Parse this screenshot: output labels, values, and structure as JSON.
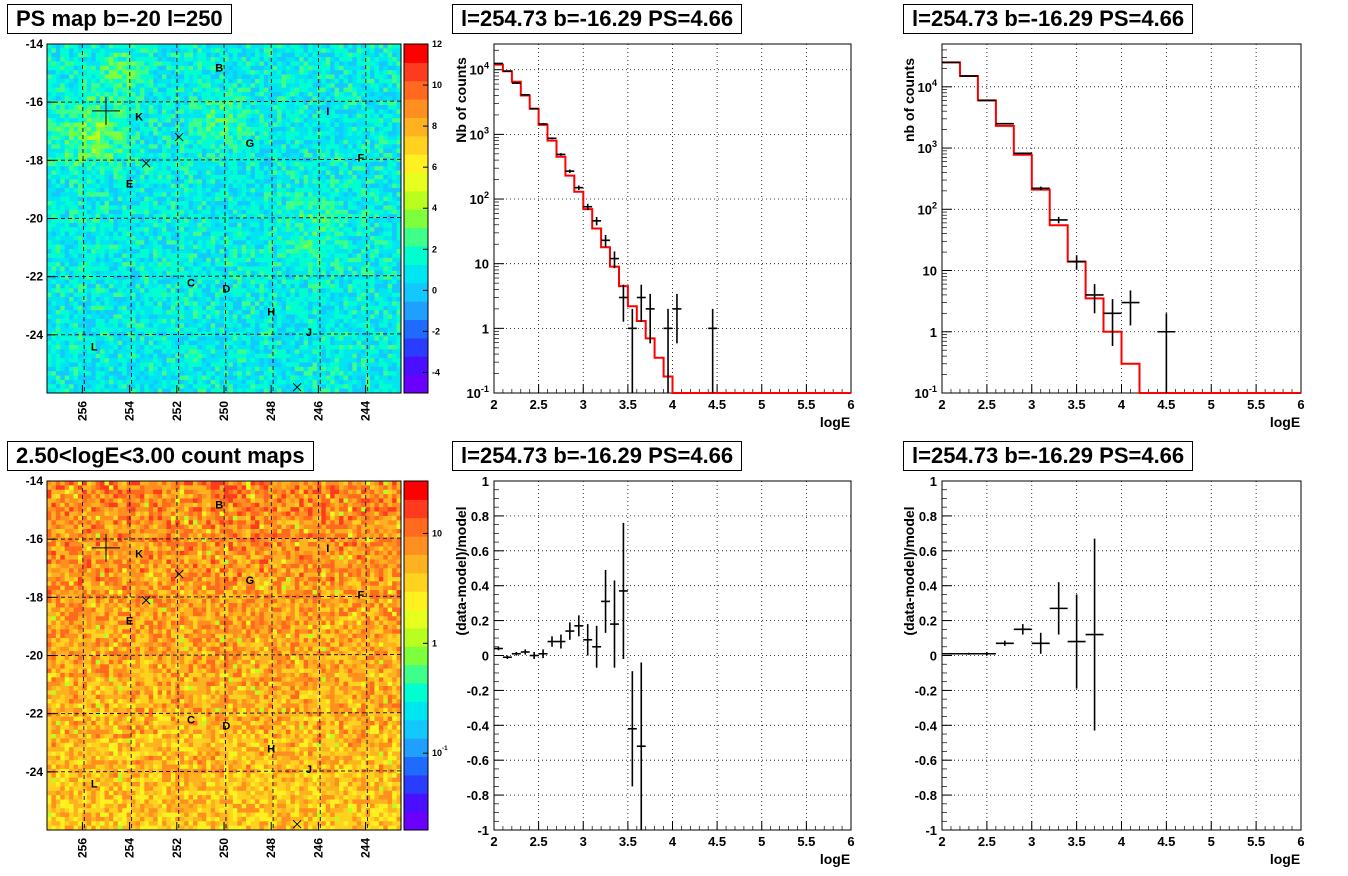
{
  "titles": {
    "map_top": "PS map b=-20 l=250",
    "map_bottom": "2.50<logE<3.00 count maps",
    "spec_fine": "l=254.73 b=-16.29 PS=4.66",
    "spec_coarse": "l=254.73 b=-16.29 PS=4.66",
    "resid_fine": "l=254.73 b=-16.29 PS=4.66",
    "resid_coarse": "l=254.73 b=-16.29 PS=4.66"
  },
  "chart_data": [
    {
      "id": "map_top",
      "type": "heatmap",
      "x_ticks": [
        "256",
        "254",
        "252",
        "250",
        "248",
        "246",
        "244"
      ],
      "x_tick_values": [
        256,
        254,
        252,
        250,
        248,
        246,
        244
      ],
      "xlim": [
        257.5,
        242.5
      ],
      "y_ticks": [
        "-14",
        "-16",
        "-18",
        "-20",
        "-22",
        "-24"
      ],
      "y_tick_values": [
        -14,
        -16,
        -18,
        -20,
        -22,
        -24
      ],
      "ylim": [
        -26,
        -14
      ],
      "colorbar_ticks": [
        "12",
        "10",
        "8",
        "6",
        "4",
        "2",
        "0",
        "-2",
        "-4"
      ],
      "colorbar_tick_values": [
        12,
        10,
        8,
        6,
        4,
        2,
        0,
        -2,
        -4
      ],
      "colorbar_range": [
        -5,
        12
      ],
      "colorbar_scale": "linear",
      "grid": true,
      "sources": [
        {
          "label": "B",
          "l": 250.2,
          "b": -14.8
        },
        {
          "label": "I",
          "l": 245.6,
          "b": -16.3
        },
        {
          "label": "K",
          "l": 253.6,
          "b": -16.5
        },
        {
          "label": "G",
          "l": 248.9,
          "b": -17.4
        },
        {
          "label": "F",
          "l": 244.2,
          "b": -17.9
        },
        {
          "label": "E",
          "l": 254.0,
          "b": -18.8
        },
        {
          "label": "C",
          "l": 251.4,
          "b": -22.2
        },
        {
          "label": "D",
          "l": 249.9,
          "b": -22.4
        },
        {
          "label": "H",
          "l": 248.0,
          "b": -23.2
        },
        {
          "label": "J",
          "l": 246.4,
          "b": -23.9
        },
        {
          "label": "L",
          "l": 255.5,
          "b": -24.4
        }
      ],
      "markers": [
        {
          "kind": "plus",
          "l": 255.0,
          "b": -16.3
        },
        {
          "kind": "x",
          "l": 253.3,
          "b": -18.1
        },
        {
          "kind": "x",
          "l": 251.9,
          "b": -17.2
        },
        {
          "kind": "x",
          "l": 246.9,
          "b": -25.8
        }
      ]
    },
    {
      "id": "map_bottom",
      "type": "heatmap",
      "x_ticks": [
        "256",
        "254",
        "252",
        "250",
        "248",
        "246",
        "244"
      ],
      "x_tick_values": [
        256,
        254,
        252,
        250,
        248,
        246,
        244
      ],
      "xlim": [
        257.5,
        242.5
      ],
      "y_ticks": [
        "-14",
        "-16",
        "-18",
        "-20",
        "-22",
        "-24"
      ],
      "y_tick_values": [
        -14,
        -16,
        -18,
        -20,
        -22,
        -24
      ],
      "ylim": [
        -26,
        -14
      ],
      "colorbar_ticks": [
        "10",
        "1",
        "10-1"
      ],
      "colorbar_tick_values": [
        10,
        1,
        0.1
      ],
      "colorbar_range": [
        0.02,
        30
      ],
      "colorbar_scale": "log",
      "grid": true,
      "sources": [
        {
          "label": "B",
          "l": 250.2,
          "b": -14.8
        },
        {
          "label": "I",
          "l": 245.6,
          "b": -16.3
        },
        {
          "label": "K",
          "l": 253.6,
          "b": -16.5
        },
        {
          "label": "G",
          "l": 248.9,
          "b": -17.4
        },
        {
          "label": "F",
          "l": 244.2,
          "b": -17.9
        },
        {
          "label": "E",
          "l": 254.0,
          "b": -18.8
        },
        {
          "label": "C",
          "l": 251.4,
          "b": -22.2
        },
        {
          "label": "D",
          "l": 249.9,
          "b": -22.4
        },
        {
          "label": "H",
          "l": 248.0,
          "b": -23.2
        },
        {
          "label": "J",
          "l": 246.4,
          "b": -23.9
        },
        {
          "label": "L",
          "l": 255.5,
          "b": -24.4
        }
      ],
      "markers": [
        {
          "kind": "plus",
          "l": 255.0,
          "b": -16.3
        },
        {
          "kind": "x",
          "l": 253.3,
          "b": -18.1
        },
        {
          "kind": "x",
          "l": 251.9,
          "b": -17.2
        },
        {
          "kind": "x",
          "l": 246.9,
          "b": -25.8
        }
      ]
    },
    {
      "id": "spec_fine",
      "type": "line",
      "xlabel": "logE",
      "ylabel": "Nb of counts",
      "yscale": "log",
      "xlim": [
        2,
        6
      ],
      "ylim": [
        0.1,
        25000
      ],
      "x_ticks": [
        "2",
        "2.5",
        "3",
        "3.5",
        "4",
        "4.5",
        "5",
        "5.5",
        "6"
      ],
      "x_tick_values": [
        2,
        2.5,
        3,
        3.5,
        4,
        4.5,
        5,
        5.5,
        6
      ],
      "y_ticks": [
        "10-1",
        "1",
        "10",
        "102",
        "103",
        "104"
      ],
      "y_tick_values": [
        0.1,
        1,
        10,
        100,
        1000,
        10000
      ],
      "grid": true,
      "bin_edges": [
        2.0,
        2.1,
        2.2,
        2.3,
        2.4,
        2.5,
        2.6,
        2.7,
        2.8,
        2.9,
        3.0,
        3.1,
        3.2,
        3.3,
        3.4,
        3.5,
        3.6,
        3.7,
        3.8,
        3.9,
        4.0,
        4.1,
        4.2,
        4.3,
        4.4,
        4.5,
        4.6,
        4.7,
        4.8,
        4.9,
        5.0,
        5.1,
        5.2,
        5.3,
        5.4,
        5.5,
        5.6,
        5.7,
        5.8,
        5.9,
        6.0
      ],
      "model": [
        12000,
        9500,
        6500,
        4000,
        2500,
        1400,
        800,
        450,
        230,
        130,
        70,
        35,
        18,
        9,
        4.5,
        2.2,
        1.3,
        0.7,
        0.35,
        0.18,
        0.1,
        0.1,
        0.1,
        0.1,
        0.1,
        0.1,
        0.1,
        0.1,
        0.1,
        0.1,
        0.1,
        0.1,
        0.1,
        0.1,
        0.1,
        0.1,
        0.1,
        0.1,
        0.1,
        0.1
      ],
      "data": [
        {
          "x": 2.05,
          "y": 12500
        },
        {
          "x": 2.15,
          "y": 9500
        },
        {
          "x": 2.25,
          "y": 6200
        },
        {
          "x": 2.35,
          "y": 4100
        },
        {
          "x": 2.45,
          "y": 2500
        },
        {
          "x": 2.55,
          "y": 1450
        },
        {
          "x": 2.65,
          "y": 870
        },
        {
          "x": 2.75,
          "y": 490
        },
        {
          "x": 2.85,
          "y": 270
        },
        {
          "x": 2.95,
          "y": 150
        },
        {
          "x": 3.05,
          "y": 76
        },
        {
          "x": 3.15,
          "y": 46
        },
        {
          "x": 3.25,
          "y": 23
        },
        {
          "x": 3.35,
          "y": 12
        },
        {
          "x": 3.45,
          "y": 3
        },
        {
          "x": 3.55,
          "y": 1
        },
        {
          "x": 3.65,
          "y": 3
        },
        {
          "x": 3.75,
          "y": 2
        },
        {
          "x": 3.95,
          "y": 1
        },
        {
          "x": 4.05,
          "y": 2
        },
        {
          "x": 4.45,
          "y": 1
        }
      ]
    },
    {
      "id": "spec_coarse",
      "type": "line",
      "xlabel": "logE",
      "ylabel": "nb of counts",
      "yscale": "log",
      "xlim": [
        2,
        6
      ],
      "ylim": [
        0.1,
        50000
      ],
      "x_ticks": [
        "2",
        "2.5",
        "3",
        "3.5",
        "4",
        "4.5",
        "5",
        "5.5",
        "6"
      ],
      "x_tick_values": [
        2,
        2.5,
        3,
        3.5,
        4,
        4.5,
        5,
        5.5,
        6
      ],
      "y_ticks": [
        "10-1",
        "1",
        "10",
        "102",
        "103",
        "104"
      ],
      "y_tick_values": [
        0.1,
        1,
        10,
        100,
        1000,
        10000
      ],
      "grid": true,
      "bin_edges": [
        2.0,
        2.2,
        2.4,
        2.6,
        2.8,
        3.0,
        3.2,
        3.4,
        3.6,
        3.8,
        4.0,
        4.2,
        4.4,
        4.6,
        4.8,
        5.0,
        5.2,
        5.4,
        5.6,
        5.8,
        6.0
      ],
      "model": [
        25000,
        15000,
        6000,
        2300,
        780,
        210,
        55,
        14,
        3.5,
        1.0,
        0.3,
        0.1,
        0.1,
        0.1,
        0.1,
        0.1,
        0.1,
        0.1,
        0.1,
        0.1
      ],
      "data": [
        {
          "x": 2.1,
          "y": 25000
        },
        {
          "x": 2.3,
          "y": 15000
        },
        {
          "x": 2.5,
          "y": 6000
        },
        {
          "x": 2.7,
          "y": 2500
        },
        {
          "x": 2.9,
          "y": 820
        },
        {
          "x": 3.1,
          "y": 220
        },
        {
          "x": 3.3,
          "y": 67
        },
        {
          "x": 3.5,
          "y": 14
        },
        {
          "x": 3.7,
          "y": 4
        },
        {
          "x": 3.9,
          "y": 2
        },
        {
          "x": 4.1,
          "y": 3
        },
        {
          "x": 4.5,
          "y": 1
        }
      ]
    },
    {
      "id": "resid_fine",
      "type": "scatter",
      "xlabel": "logE",
      "ylabel": "(data-model)/model",
      "xlim": [
        2,
        6
      ],
      "ylim": [
        -1,
        1
      ],
      "x_ticks": [
        "2",
        "2.5",
        "3",
        "3.5",
        "4",
        "4.5",
        "5",
        "5.5",
        "6"
      ],
      "x_tick_values": [
        2,
        2.5,
        3,
        3.5,
        4,
        4.5,
        5,
        5.5,
        6
      ],
      "y_ticks": [
        "1",
        "0.8",
        "0.6",
        "0.4",
        "0.2",
        "0",
        "-0.2",
        "-0.4",
        "-0.6",
        "-0.8",
        "-1"
      ],
      "y_tick_values": [
        1,
        0.8,
        0.6,
        0.4,
        0.2,
        0,
        -0.2,
        -0.4,
        -0.6,
        -0.8,
        -1
      ],
      "grid": true,
      "points": [
        {
          "x": 2.05,
          "y": 0.04,
          "err": 0.01
        },
        {
          "x": 2.15,
          "y": -0.01,
          "err": 0.01
        },
        {
          "x": 2.25,
          "y": 0.01,
          "err": 0.01
        },
        {
          "x": 2.35,
          "y": 0.02,
          "err": 0.015
        },
        {
          "x": 2.45,
          "y": 0.0,
          "err": 0.02
        },
        {
          "x": 2.55,
          "y": 0.01,
          "err": 0.025
        },
        {
          "x": 2.65,
          "y": 0.08,
          "err": 0.03
        },
        {
          "x": 2.75,
          "y": 0.08,
          "err": 0.04
        },
        {
          "x": 2.85,
          "y": 0.14,
          "err": 0.05
        },
        {
          "x": 2.95,
          "y": 0.17,
          "err": 0.06
        },
        {
          "x": 3.05,
          "y": 0.09,
          "err": 0.09
        },
        {
          "x": 3.15,
          "y": 0.05,
          "err": 0.12
        },
        {
          "x": 3.25,
          "y": 0.31,
          "err": 0.18
        },
        {
          "x": 3.35,
          "y": 0.18,
          "err": 0.25
        },
        {
          "x": 3.45,
          "y": 0.37,
          "err": 0.39
        },
        {
          "x": 3.55,
          "y": -0.42,
          "err": 0.33
        },
        {
          "x": 3.65,
          "y": -0.52,
          "err": 0.48
        }
      ]
    },
    {
      "id": "resid_coarse",
      "type": "scatter",
      "xlabel": "logE",
      "ylabel": "(data-model)/model",
      "xlim": [
        2,
        6
      ],
      "ylim": [
        -1,
        1
      ],
      "x_ticks": [
        "2",
        "2.5",
        "3",
        "3.5",
        "4",
        "4.5",
        "5",
        "5.5",
        "6"
      ],
      "x_tick_values": [
        2,
        2.5,
        3,
        3.5,
        4,
        4.5,
        5,
        5.5,
        6
      ],
      "y_ticks": [
        "1",
        "0.8",
        "0.6",
        "0.4",
        "0.2",
        "0",
        "-0.2",
        "-0.4",
        "-0.6",
        "-0.8",
        "-1"
      ],
      "y_tick_values": [
        1,
        0.8,
        0.6,
        0.4,
        0.2,
        0,
        -0.2,
        -0.4,
        -0.6,
        -0.8,
        -1
      ],
      "grid": true,
      "points": [
        {
          "x": 2.1,
          "y": 0.01,
          "err": 0.005
        },
        {
          "x": 2.3,
          "y": 0.01,
          "err": 0.006
        },
        {
          "x": 2.5,
          "y": 0.01,
          "err": 0.01
        },
        {
          "x": 2.7,
          "y": 0.07,
          "err": 0.015
        },
        {
          "x": 2.9,
          "y": 0.15,
          "err": 0.03
        },
        {
          "x": 3.1,
          "y": 0.07,
          "err": 0.06
        },
        {
          "x": 3.3,
          "y": 0.27,
          "err": 0.15
        },
        {
          "x": 3.5,
          "y": 0.08,
          "err": 0.27
        },
        {
          "x": 3.7,
          "y": 0.12,
          "err": 0.55
        }
      ]
    }
  ]
}
